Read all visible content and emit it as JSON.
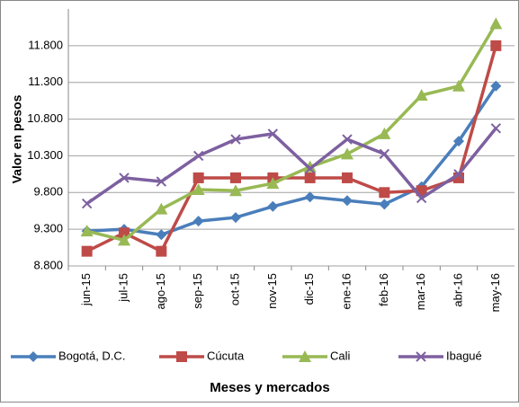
{
  "chart_data": {
    "type": "line",
    "y_label": "Valor en pesos",
    "x_label": "Meses y mercados",
    "categories": [
      "jun-15",
      "jul-15",
      "ago-15",
      "sep-15",
      "oct-15",
      "nov-15",
      "dic-15",
      "ene-16",
      "feb-16",
      "mar-16",
      "abr-16",
      "may-16"
    ],
    "series": [
      {
        "name": "Bogotá, D.C.",
        "color": "#4a7ebb",
        "marker": "diamond",
        "values": [
          9275,
          9300,
          9225,
          9410,
          9460,
          9610,
          9740,
          9690,
          9640,
          9880,
          10500,
          11250
        ]
      },
      {
        "name": "Cúcuta",
        "color": "#be4b48",
        "marker": "square",
        "values": [
          9000,
          9250,
          9000,
          10000,
          10000,
          10000,
          10000,
          10000,
          9800,
          9825,
          10000,
          11800
        ]
      },
      {
        "name": "Cali",
        "color": "#98b954",
        "marker": "triangle",
        "values": [
          9275,
          9150,
          9575,
          9840,
          9825,
          9925,
          10150,
          10325,
          10600,
          11125,
          11250,
          12100
        ]
      },
      {
        "name": "Ibagué",
        "color": "#7d60a0",
        "marker": "x",
        "values": [
          9650,
          10000,
          9950,
          10300,
          10525,
          10600,
          10125,
          10525,
          10325,
          9725,
          10050,
          10675
        ]
      }
    ],
    "ylim": [
      8800,
      12300
    ],
    "yticks": [
      {
        "value": 8800,
        "label": "8.800"
      },
      {
        "value": 9300,
        "label": "9.300"
      },
      {
        "value": 9800,
        "label": "9.800"
      },
      {
        "value": 10300,
        "label": "10.300"
      },
      {
        "value": 10800,
        "label": "10.800"
      },
      {
        "value": 11300,
        "label": "11.300"
      },
      {
        "value": 11800,
        "label": "11.800"
      }
    ],
    "grid": true,
    "legend": "bottom"
  }
}
